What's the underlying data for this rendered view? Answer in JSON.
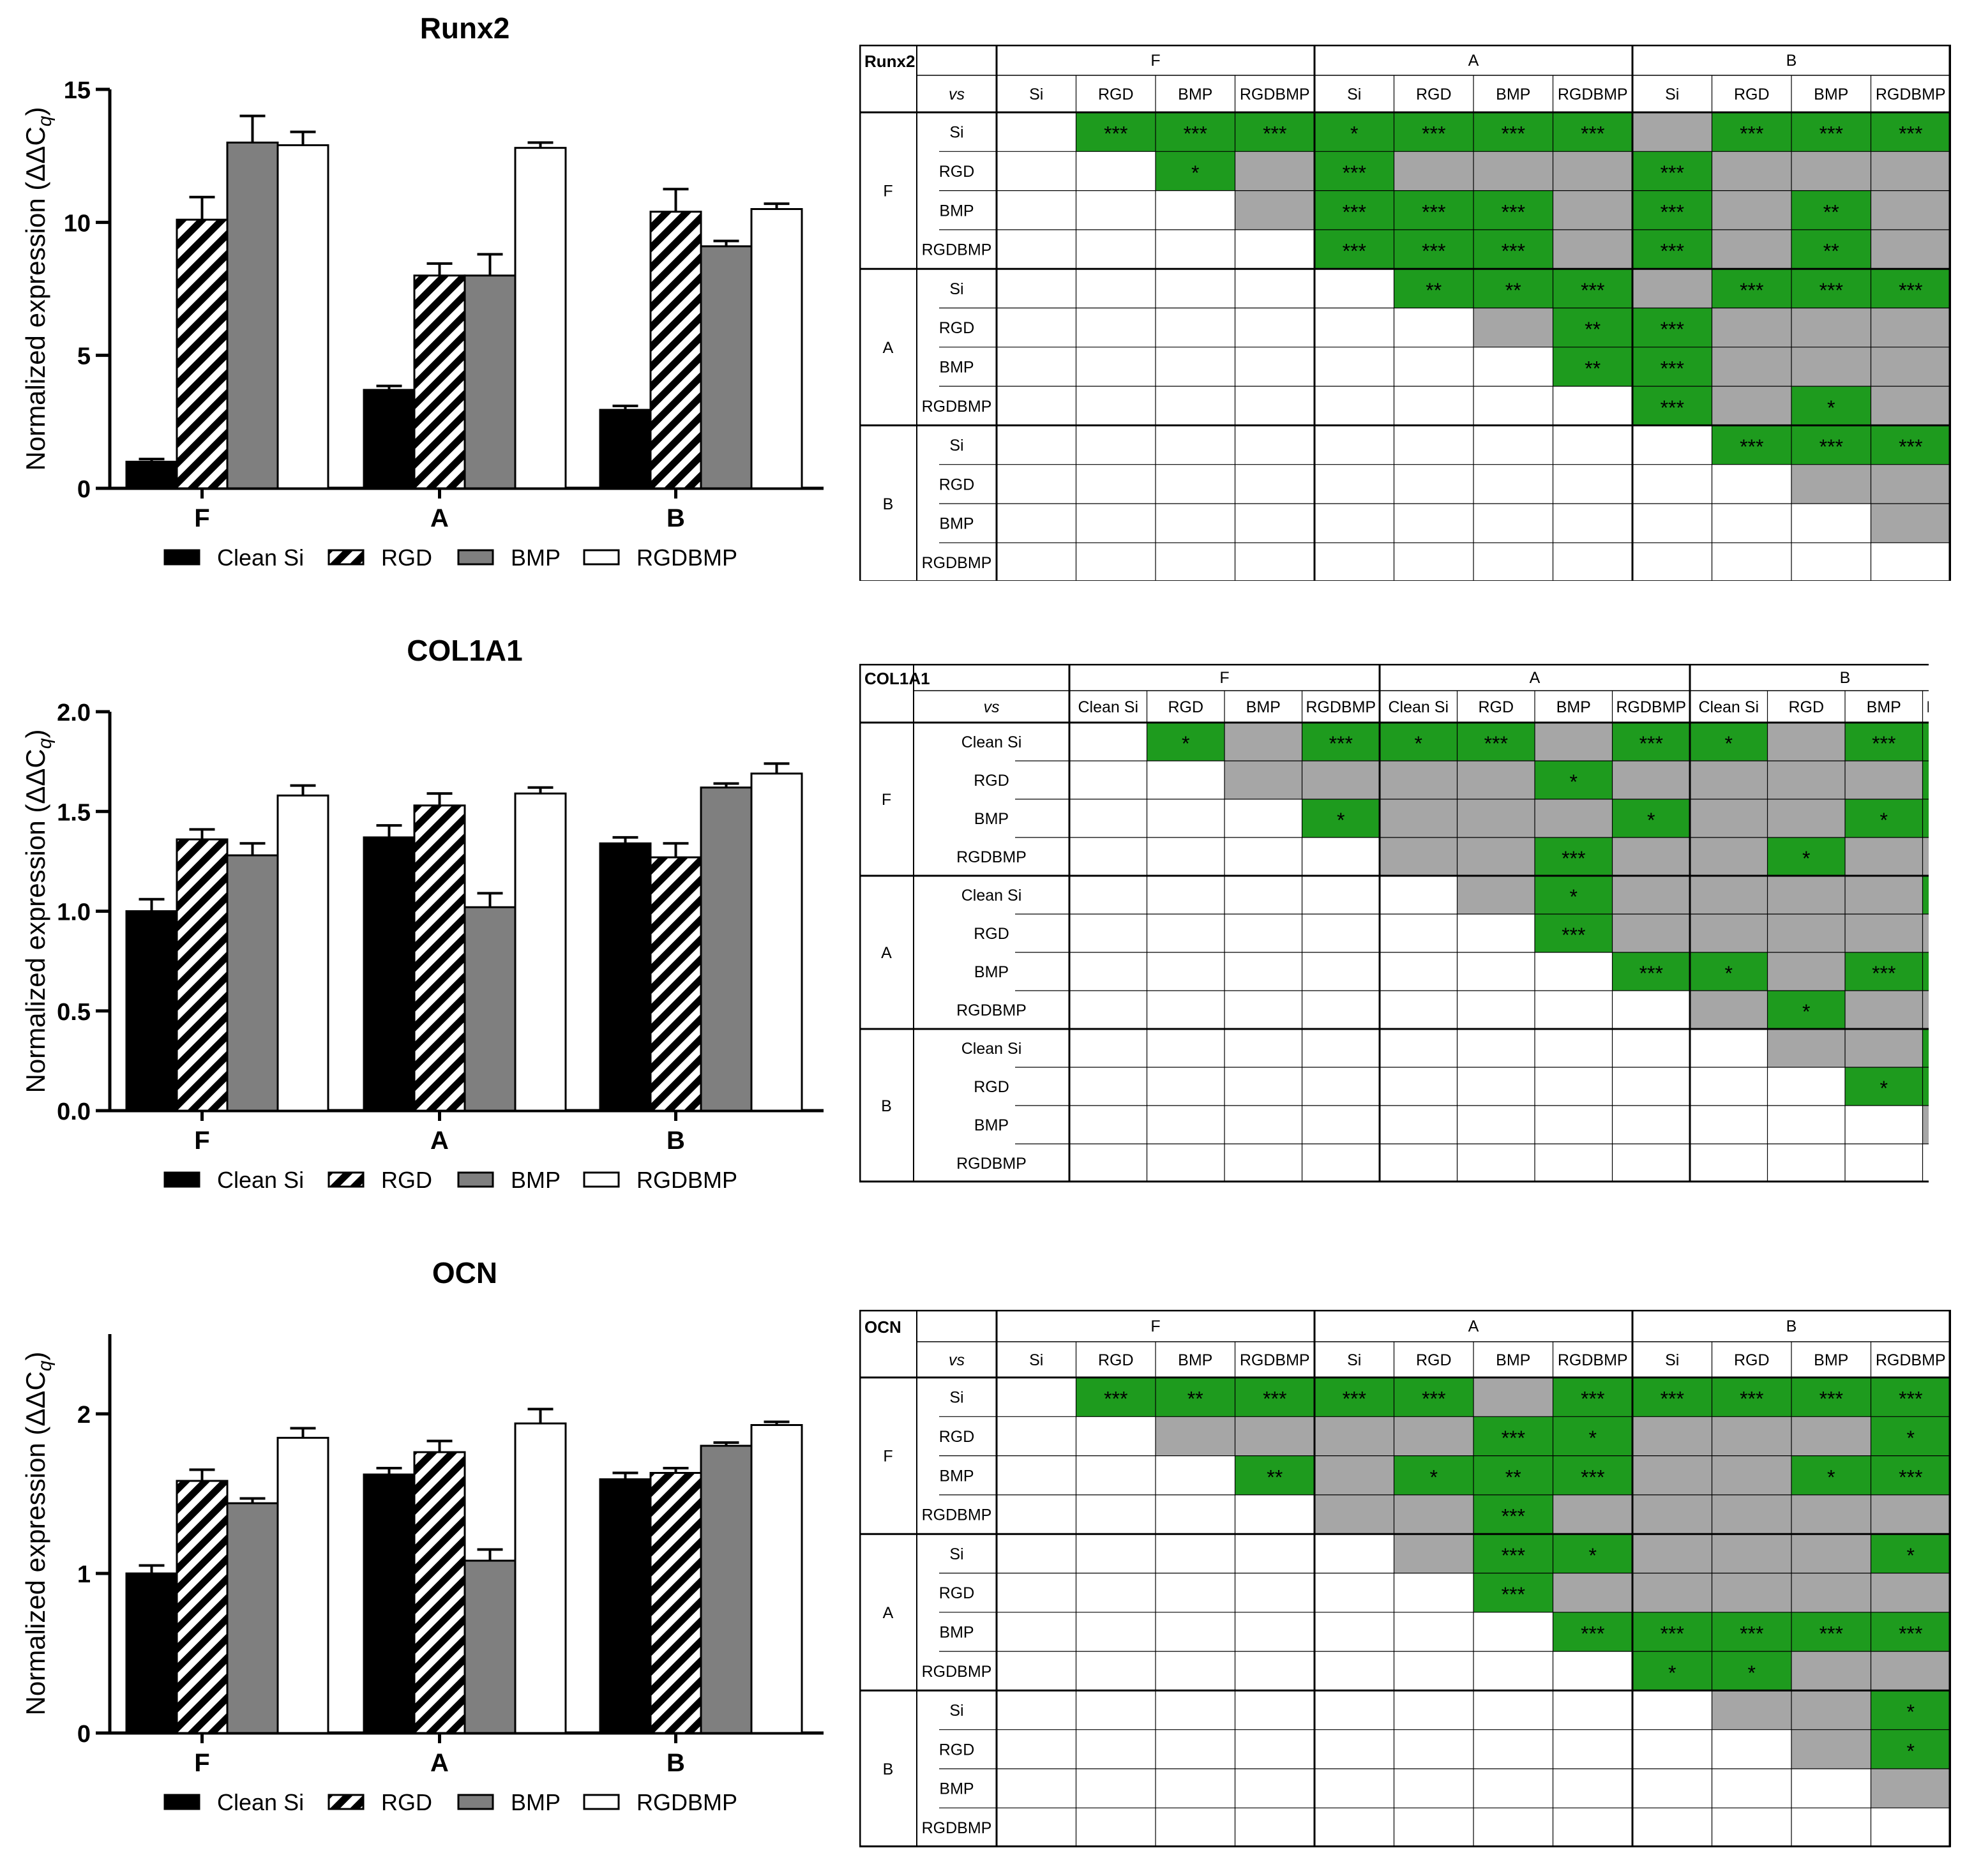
{
  "chart_data": [
    {
      "type": "bar",
      "title": "Runx2",
      "ylabel": "Normalized expression (ΔΔC",
      "ylabel_sub": "q",
      "ylabel_close": ")",
      "categories": [
        "F",
        "A",
        "B"
      ],
      "ylim": [
        0,
        15
      ],
      "yticks": [
        "0",
        "5",
        "10",
        "15"
      ],
      "yticks_values": [
        0,
        5,
        10,
        15
      ],
      "legend_position": "bottom",
      "series": [
        {
          "name": "Clean Si",
          "pattern": "solid-black",
          "values": [
            1.0,
            3.7,
            2.95
          ],
          "errors": [
            0.1,
            0.15,
            0.15
          ]
        },
        {
          "name": "RGD",
          "pattern": "hatch",
          "values": [
            10.1,
            8.0,
            10.4
          ],
          "errors": [
            0.85,
            0.45,
            0.85
          ]
        },
        {
          "name": "BMP",
          "pattern": "solid-gray",
          "values": [
            13.0,
            8.0,
            9.1
          ],
          "errors": [
            1.0,
            0.8,
            0.2
          ]
        },
        {
          "name": "RGDBMP",
          "pattern": "solid-white",
          "values": [
            12.9,
            12.8,
            10.5
          ],
          "errors": [
            0.5,
            0.2,
            0.2
          ]
        }
      ]
    },
    {
      "type": "bar",
      "title": "COL1A1",
      "ylabel": "Normalized expression (ΔΔC",
      "ylabel_sub": "q",
      "ylabel_close": ")",
      "categories": [
        "F",
        "A",
        "B"
      ],
      "ylim": [
        0,
        2.0
      ],
      "yticks": [
        "0.0",
        "0.5",
        "1.0",
        "1.5",
        "2.0"
      ],
      "yticks_values": [
        0,
        0.5,
        1.0,
        1.5,
        2.0
      ],
      "legend_position": "bottom",
      "series": [
        {
          "name": "Clean Si",
          "pattern": "solid-black",
          "values": [
            1.0,
            1.37,
            1.34
          ],
          "errors": [
            0.06,
            0.06,
            0.03
          ]
        },
        {
          "name": "RGD",
          "pattern": "hatch",
          "values": [
            1.36,
            1.53,
            1.27
          ],
          "errors": [
            0.05,
            0.06,
            0.07
          ]
        },
        {
          "name": "BMP",
          "pattern": "solid-gray",
          "values": [
            1.28,
            1.02,
            1.62
          ],
          "errors": [
            0.06,
            0.07,
            0.02
          ]
        },
        {
          "name": "RGDBMP",
          "pattern": "solid-white",
          "values": [
            1.58,
            1.59,
            1.69
          ],
          "errors": [
            0.05,
            0.03,
            0.05
          ]
        }
      ]
    },
    {
      "type": "bar",
      "title": "OCN",
      "ylabel": "Normalized expression (ΔΔC",
      "ylabel_sub": "q",
      "ylabel_close": ")",
      "categories": [
        "F",
        "A",
        "B"
      ],
      "ylim": [
        0,
        2.5
      ],
      "yticks": [
        "0",
        "1",
        "2"
      ],
      "yticks_values": [
        0,
        1,
        2
      ],
      "legend_position": "bottom",
      "series": [
        {
          "name": "Clean Si",
          "pattern": "solid-black",
          "values": [
            1.0,
            1.62,
            1.59
          ],
          "errors": [
            0.05,
            0.04,
            0.04
          ]
        },
        {
          "name": "RGD",
          "pattern": "hatch",
          "values": [
            1.58,
            1.76,
            1.63
          ],
          "errors": [
            0.07,
            0.07,
            0.03
          ]
        },
        {
          "name": "BMP",
          "pattern": "solid-gray",
          "values": [
            1.44,
            1.08,
            1.8
          ],
          "errors": [
            0.03,
            0.07,
            0.02
          ]
        },
        {
          "name": "RGDBMP",
          "pattern": "solid-white",
          "values": [
            1.85,
            1.94,
            1.93
          ],
          "errors": [
            0.06,
            0.09,
            0.02
          ]
        }
      ]
    }
  ],
  "legend": [
    "Clean Si",
    "RGD",
    "BMP",
    "RGDBMP"
  ],
  "colors": {
    "significant": "#1e9b1e",
    "not_significant": "#a6a6a6",
    "gray_bar": "#7f7f7f"
  },
  "tables": [
    {
      "title": "Runx2",
      "vs_label": "vs",
      "groups": [
        "F",
        "A",
        "B"
      ],
      "subs": [
        "Si",
        "RGD",
        "BMP",
        "RGDBMP"
      ],
      "cells": [
        [
          null,
          "***",
          "***",
          "***",
          "*",
          "***",
          "***",
          "***",
          "ns",
          "***",
          "***",
          "***"
        ],
        [
          null,
          null,
          "*",
          "ns",
          "***",
          "ns",
          "ns",
          "ns",
          "***",
          "ns",
          "ns",
          "ns"
        ],
        [
          null,
          null,
          null,
          "ns",
          "***",
          "***",
          "***",
          "ns",
          "***",
          "ns",
          "**",
          "ns"
        ],
        [
          null,
          null,
          null,
          null,
          "***",
          "***",
          "***",
          "ns",
          "***",
          "ns",
          "**",
          "ns"
        ],
        [
          null,
          null,
          null,
          null,
          null,
          "**",
          "**",
          "***",
          "ns",
          "***",
          "***",
          "***"
        ],
        [
          null,
          null,
          null,
          null,
          null,
          null,
          "ns",
          "**",
          "***",
          "ns",
          "ns",
          "ns"
        ],
        [
          null,
          null,
          null,
          null,
          null,
          null,
          null,
          "**",
          "***",
          "ns",
          "ns",
          "ns"
        ],
        [
          null,
          null,
          null,
          null,
          null,
          null,
          null,
          null,
          "***",
          "ns",
          "*",
          "ns"
        ],
        [
          null,
          null,
          null,
          null,
          null,
          null,
          null,
          null,
          null,
          "***",
          "***",
          "***"
        ],
        [
          null,
          null,
          null,
          null,
          null,
          null,
          null,
          null,
          null,
          null,
          "ns",
          "ns"
        ],
        [
          null,
          null,
          null,
          null,
          null,
          null,
          null,
          null,
          null,
          null,
          null,
          "ns"
        ],
        [
          null,
          null,
          null,
          null,
          null,
          null,
          null,
          null,
          null,
          null,
          null,
          null
        ]
      ]
    },
    {
      "title": "COL1A1",
      "vs_label": "vs",
      "groups": [
        "F",
        "A",
        "B"
      ],
      "subs": [
        "Clean Si",
        "RGD",
        "BMP",
        "RGDBMP"
      ],
      "cells": [
        [
          null,
          "*",
          "ns",
          "***",
          "*",
          "***",
          "ns",
          "***",
          "*",
          "ns",
          "***",
          "***"
        ],
        [
          null,
          null,
          "ns",
          "ns",
          "ns",
          "ns",
          "*",
          "ns",
          "ns",
          "ns",
          "ns",
          "*"
        ],
        [
          null,
          null,
          null,
          "*",
          "ns",
          "ns",
          "ns",
          "*",
          "ns",
          "ns",
          "*",
          "**"
        ],
        [
          null,
          null,
          null,
          null,
          "ns",
          "ns",
          "***",
          "ns",
          "ns",
          "*",
          "ns",
          "ns"
        ],
        [
          null,
          null,
          null,
          null,
          null,
          "ns",
          "*",
          "ns",
          "ns",
          "ns",
          "ns",
          "*"
        ],
        [
          null,
          null,
          null,
          null,
          null,
          null,
          "***",
          "ns",
          "ns",
          "ns",
          "ns",
          "ns"
        ],
        [
          null,
          null,
          null,
          null,
          null,
          null,
          null,
          "***",
          "*",
          "ns",
          "***",
          "***"
        ],
        [
          null,
          null,
          null,
          null,
          null,
          null,
          null,
          null,
          "ns",
          "*",
          "ns",
          "ns"
        ],
        [
          null,
          null,
          null,
          null,
          null,
          null,
          null,
          null,
          null,
          "ns",
          "ns",
          "*"
        ],
        [
          null,
          null,
          null,
          null,
          null,
          null,
          null,
          null,
          null,
          null,
          "*",
          "**"
        ],
        [
          null,
          null,
          null,
          null,
          null,
          null,
          null,
          null,
          null,
          null,
          null,
          "ns"
        ],
        [
          null,
          null,
          null,
          null,
          null,
          null,
          null,
          null,
          null,
          null,
          null,
          null
        ]
      ]
    },
    {
      "title": "OCN",
      "vs_label": "vs",
      "groups": [
        "F",
        "A",
        "B"
      ],
      "subs": [
        "Si",
        "RGD",
        "BMP",
        "RGDBMP"
      ],
      "cells": [
        [
          null,
          "***",
          "**",
          "***",
          "***",
          "***",
          "ns",
          "***",
          "***",
          "***",
          "***",
          "***"
        ],
        [
          null,
          null,
          "ns",
          "ns",
          "ns",
          "ns",
          "***",
          "*",
          "ns",
          "ns",
          "ns",
          "*"
        ],
        [
          null,
          null,
          null,
          "**",
          "ns",
          "*",
          "**",
          "***",
          "ns",
          "ns",
          "*",
          "***"
        ],
        [
          null,
          null,
          null,
          null,
          "ns",
          "ns",
          "***",
          "ns",
          "ns",
          "ns",
          "ns",
          "ns"
        ],
        [
          null,
          null,
          null,
          null,
          null,
          "ns",
          "***",
          "*",
          "ns",
          "ns",
          "ns",
          "*"
        ],
        [
          null,
          null,
          null,
          null,
          null,
          null,
          "***",
          "ns",
          "ns",
          "ns",
          "ns",
          "ns"
        ],
        [
          null,
          null,
          null,
          null,
          null,
          null,
          null,
          "***",
          "***",
          "***",
          "***",
          "***"
        ],
        [
          null,
          null,
          null,
          null,
          null,
          null,
          null,
          null,
          "*",
          "*",
          "ns",
          "ns"
        ],
        [
          null,
          null,
          null,
          null,
          null,
          null,
          null,
          null,
          null,
          "ns",
          "ns",
          "*"
        ],
        [
          null,
          null,
          null,
          null,
          null,
          null,
          null,
          null,
          null,
          null,
          "ns",
          "*"
        ],
        [
          null,
          null,
          null,
          null,
          null,
          null,
          null,
          null,
          null,
          null,
          null,
          "ns"
        ],
        [
          null,
          null,
          null,
          null,
          null,
          null,
          null,
          null,
          null,
          null,
          null,
          null
        ]
      ]
    }
  ]
}
